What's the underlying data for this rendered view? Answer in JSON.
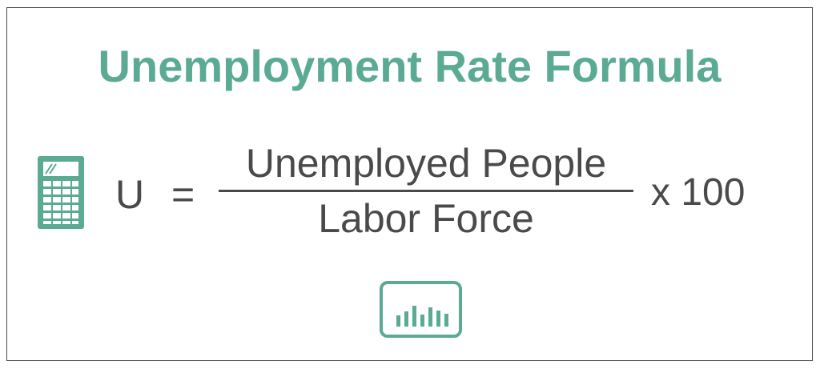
{
  "title": "Unemployment Rate Formula",
  "formula": {
    "variable": "U",
    "equals": "=",
    "numerator": "Unemployed People",
    "denominator": "Labor Force",
    "multiplier": "x 100"
  },
  "icons": {
    "left": "calculator-icon",
    "bottom": "bar-chart-icon"
  },
  "colors": {
    "accent": "#5aaa94",
    "text": "#4a4a4a",
    "border": "#4a4a4a"
  }
}
